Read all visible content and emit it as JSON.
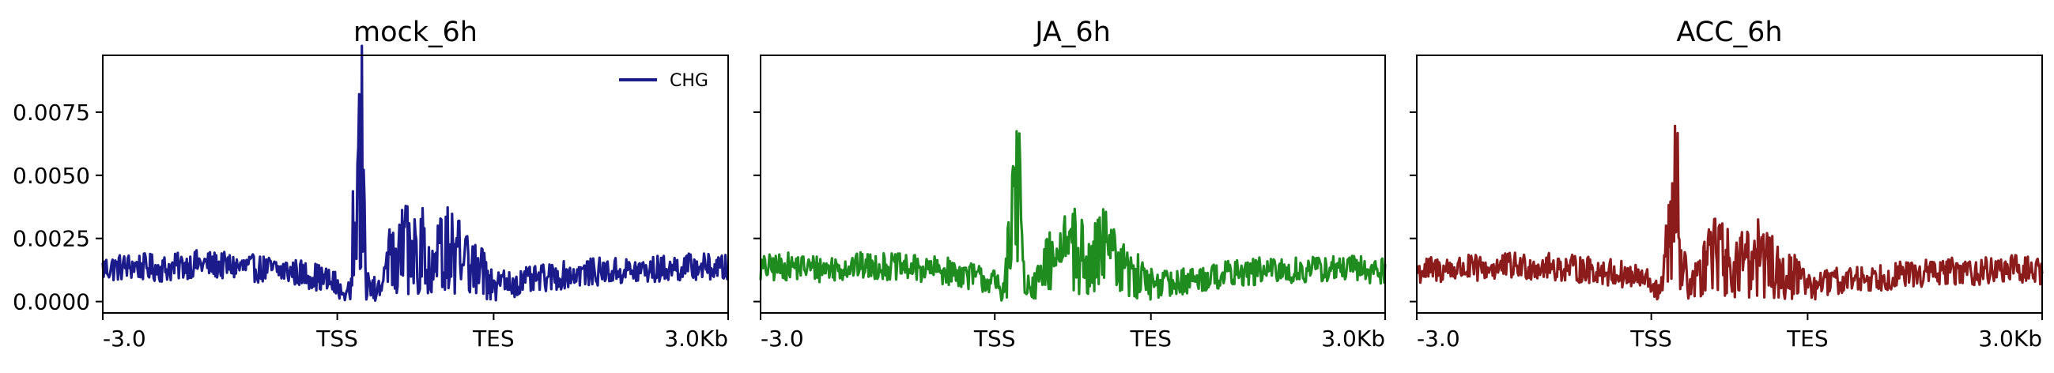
{
  "chart_data": {
    "type": "line",
    "ylim": [
      -0.00045,
      0.00975
    ],
    "yticks": [
      "0.0000",
      "0.0025",
      "0.0050",
      "0.0075"
    ],
    "ytick_values": [
      0,
      0.0025,
      0.005,
      0.0075
    ],
    "xticks": [
      "-3.0",
      "TSS",
      "TES",
      "3.0Kb"
    ],
    "xtick_positions": [
      0,
      0.375,
      0.625,
      1
    ],
    "legend": {
      "label": "CHG",
      "color": "#1b1b8c",
      "placement": "upper right of first panel"
    },
    "panels": [
      {
        "title": "mock_6h",
        "color": "#1b1b8c",
        "profile": [
          [
            0,
            0.0013
          ],
          [
            0.05,
            0.0014
          ],
          [
            0.1,
            0.0013
          ],
          [
            0.15,
            0.0015
          ],
          [
            0.2,
            0.0014
          ],
          [
            0.25,
            0.0013
          ],
          [
            0.3,
            0.0012
          ],
          [
            0.34,
            0.001
          ],
          [
            0.37,
            0.0007
          ],
          [
            0.39,
            0.0003
          ],
          [
            0.41,
            0.006
          ],
          [
            0.415,
            0.009
          ],
          [
            0.42,
            0.0015
          ],
          [
            0.44,
            0.0005
          ],
          [
            0.46,
            0.0022
          ],
          [
            0.48,
            0.0028
          ],
          [
            0.5,
            0.0025
          ],
          [
            0.52,
            0.003
          ],
          [
            0.54,
            0.0025
          ],
          [
            0.56,
            0.0028
          ],
          [
            0.58,
            0.002
          ],
          [
            0.6,
            0.0018
          ],
          [
            0.62,
            0.001
          ],
          [
            0.65,
            0.0007
          ],
          [
            0.7,
            0.0009
          ],
          [
            0.75,
            0.0011
          ],
          [
            0.8,
            0.0012
          ],
          [
            0.85,
            0.0012
          ],
          [
            0.9,
            0.0013
          ],
          [
            0.95,
            0.0014
          ],
          [
            1,
            0.0013
          ]
        ]
      },
      {
        "title": "JA_6h",
        "color": "#1e8c1e",
        "profile": [
          [
            0,
            0.0013
          ],
          [
            0.05,
            0.0014
          ],
          [
            0.1,
            0.0013
          ],
          [
            0.15,
            0.0014
          ],
          [
            0.2,
            0.0014
          ],
          [
            0.25,
            0.0013
          ],
          [
            0.3,
            0.0012
          ],
          [
            0.34,
            0.001
          ],
          [
            0.37,
            0.0008
          ],
          [
            0.39,
            0.0005
          ],
          [
            0.41,
            0.0065
          ],
          [
            0.415,
            0.006
          ],
          [
            0.42,
            0.002
          ],
          [
            0.44,
            0.0008
          ],
          [
            0.46,
            0.002
          ],
          [
            0.48,
            0.0026
          ],
          [
            0.5,
            0.0028
          ],
          [
            0.52,
            0.0022
          ],
          [
            0.54,
            0.003
          ],
          [
            0.56,
            0.0025
          ],
          [
            0.58,
            0.0018
          ],
          [
            0.6,
            0.0015
          ],
          [
            0.62,
            0.001
          ],
          [
            0.65,
            0.0007
          ],
          [
            0.7,
            0.0009
          ],
          [
            0.75,
            0.0011
          ],
          [
            0.8,
            0.0012
          ],
          [
            0.85,
            0.0012
          ],
          [
            0.9,
            0.0013
          ],
          [
            0.95,
            0.0013
          ],
          [
            1,
            0.0012
          ]
        ]
      },
      {
        "title": "ACC_6h",
        "color": "#8c1b1b",
        "profile": [
          [
            0,
            0.0012
          ],
          [
            0.05,
            0.0013
          ],
          [
            0.1,
            0.0013
          ],
          [
            0.15,
            0.0014
          ],
          [
            0.2,
            0.0014
          ],
          [
            0.25,
            0.0013
          ],
          [
            0.3,
            0.0012
          ],
          [
            0.34,
            0.001
          ],
          [
            0.37,
            0.0008
          ],
          [
            0.39,
            0.0005
          ],
          [
            0.41,
            0.0045
          ],
          [
            0.415,
            0.0082
          ],
          [
            0.42,
            0.002
          ],
          [
            0.44,
            0.0008
          ],
          [
            0.46,
            0.0018
          ],
          [
            0.48,
            0.0025
          ],
          [
            0.5,
            0.0022
          ],
          [
            0.52,
            0.002
          ],
          [
            0.54,
            0.0024
          ],
          [
            0.56,
            0.0022
          ],
          [
            0.58,
            0.0018
          ],
          [
            0.6,
            0.0015
          ],
          [
            0.62,
            0.0009
          ],
          [
            0.65,
            0.0007
          ],
          [
            0.7,
            0.0009
          ],
          [
            0.75,
            0.001
          ],
          [
            0.8,
            0.0011
          ],
          [
            0.85,
            0.0012
          ],
          [
            0.9,
            0.0012
          ],
          [
            0.95,
            0.0013
          ],
          [
            1,
            0.0012
          ]
        ]
      }
    ]
  }
}
